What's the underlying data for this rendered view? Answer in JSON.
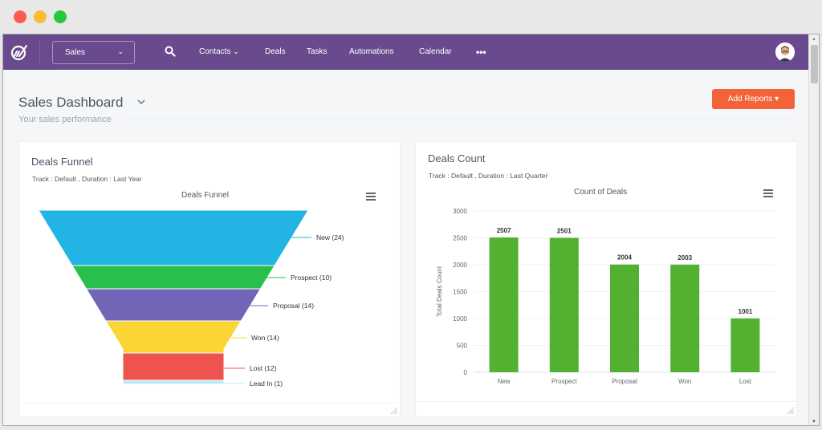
{
  "window": {
    "traffic_lights": [
      "close",
      "minimize",
      "maximize"
    ]
  },
  "navbar": {
    "logo_icon": "brand-logo-icon",
    "module_select": {
      "value": "Sales",
      "icon": "chevron-down-icon"
    },
    "search_icon": "search-icon",
    "items": [
      {
        "label": "Contacts",
        "has_dropdown": true
      },
      {
        "label": "Deals"
      },
      {
        "label": "Tasks"
      },
      {
        "label": "Automations"
      },
      {
        "label": "Calendar"
      }
    ],
    "more_label": "•••",
    "avatar_icon": "user-avatar"
  },
  "header": {
    "title": "Sales Dashboard",
    "subtitle": "Your sales performance",
    "add_reports_label": "Add Reports ▾"
  },
  "colors": {
    "navbar": "#694a8c",
    "accent_button": "#f2633a",
    "bar_green": "#52b131"
  },
  "cards": {
    "funnel": {
      "title": "Deals Funnel",
      "subtitle": "Track : Default ,  Duration : Last Year",
      "chart_title": "Deals Funnel"
    },
    "count": {
      "title": "Deals Count",
      "subtitle": "Track : Default , Duration : Last Quarter",
      "chart_title": "Count of Deals"
    }
  },
  "chart_data": [
    {
      "type": "funnel",
      "title": "Deals Funnel",
      "categories": [
        "New",
        "Prospect",
        "Proposal",
        "Won",
        "Lost",
        "Lead In"
      ],
      "values": [
        24,
        10,
        14,
        14,
        12,
        1
      ],
      "labels": [
        "New (24)",
        "Prospect (10)",
        "Proposal (14)",
        "Won (14)",
        "Lost (12)",
        "Lead In (1)"
      ],
      "colors": [
        "#22b5e3",
        "#29bf4d",
        "#7165b8",
        "#fbd534",
        "#ef5350",
        "#b8ecf5"
      ]
    },
    {
      "type": "bar",
      "title": "Count of Deals",
      "categories": [
        "New",
        "Prospect",
        "Proposal",
        "Won",
        "Lost"
      ],
      "values": [
        2507,
        2501,
        2004,
        2003,
        1001
      ],
      "xlabel": "",
      "ylabel": "Total Deals Count",
      "ylim": [
        0,
        3000
      ],
      "yticks": [
        0,
        500,
        1000,
        1500,
        2000,
        2500,
        3000
      ],
      "grid": true,
      "data_labels": true
    }
  ]
}
